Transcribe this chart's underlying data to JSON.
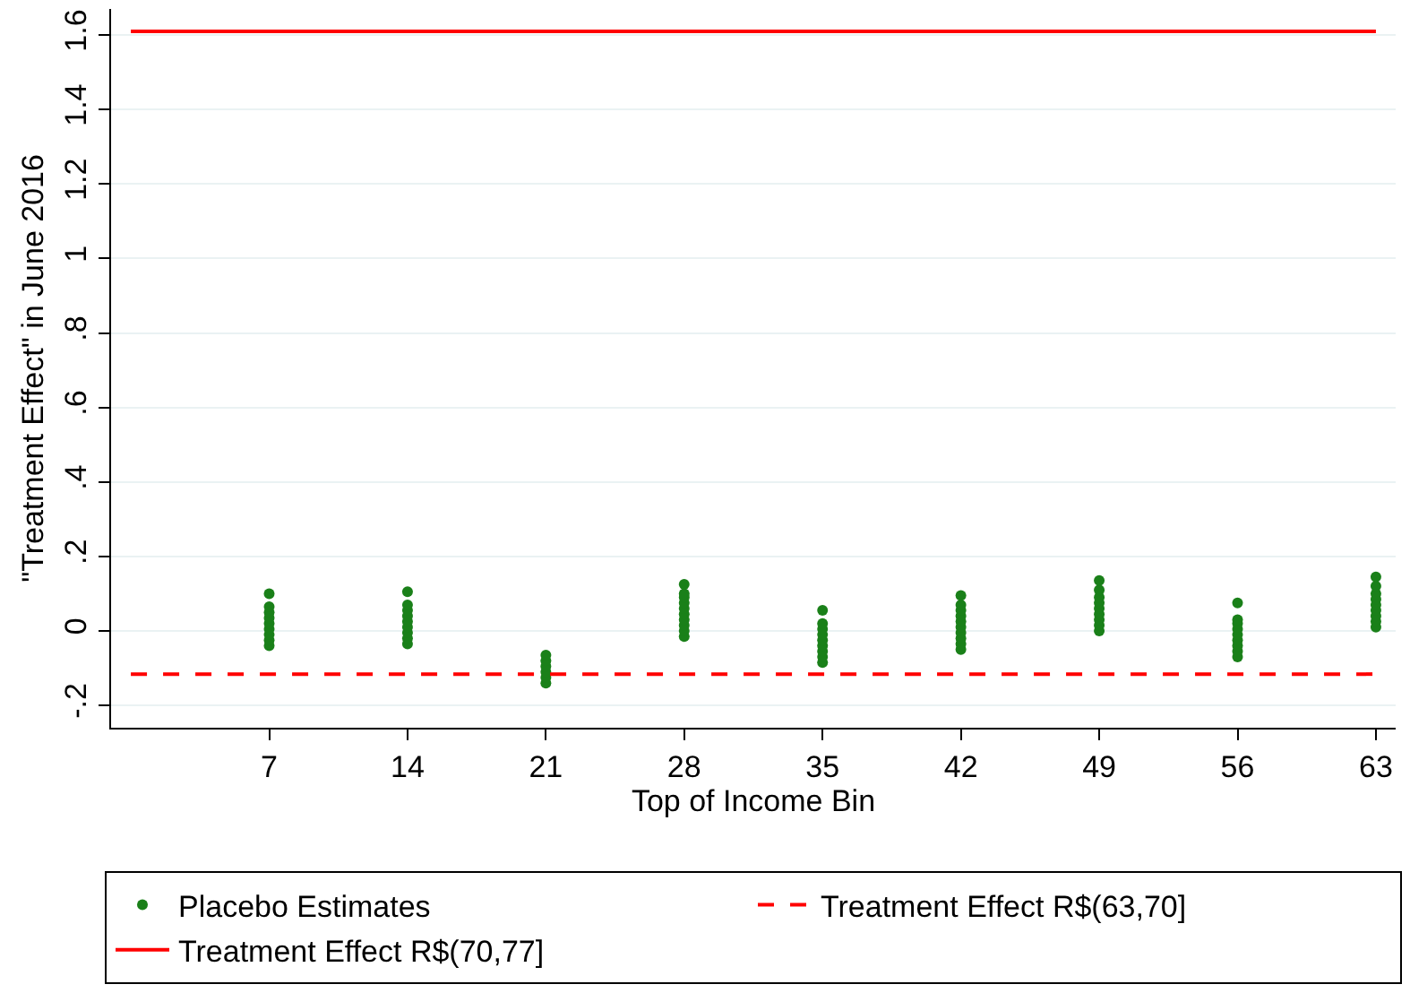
{
  "chart_data": {
    "type": "scatter",
    "xlabel": "Top of Income Bin",
    "ylabel": "\"Treatment Effect\" in June 2016",
    "xlim": [
      -1,
      64
    ],
    "xticks": [
      7,
      14,
      21,
      28,
      35,
      42,
      49,
      56,
      63
    ],
    "ylim": [
      -0.26,
      1.67
    ],
    "yticks": [
      {
        "value": -0.2,
        "label": "-.2"
      },
      0,
      {
        "value": 0.2,
        "label": ".2"
      },
      {
        "value": 0.4,
        "label": ".4"
      },
      {
        "value": 0.6,
        "label": ".6"
      },
      {
        "value": 0.8,
        "label": ".8"
      },
      1,
      {
        "value": 1.2,
        "label": "1.2"
      },
      {
        "value": 1.4,
        "label": "1.4"
      },
      {
        "value": 1.6,
        "label": "1.6"
      }
    ],
    "grid": "y",
    "legend": "bottom",
    "series": [
      {
        "name": "Placebo Estimates",
        "marker": "circle",
        "color": "#1a8019",
        "x": [
          7,
          7,
          7,
          7,
          7,
          7,
          7,
          7,
          7,
          14,
          14,
          14,
          14,
          14,
          14,
          14,
          14,
          14,
          21,
          21,
          21,
          21,
          21,
          21,
          28,
          28,
          28,
          28,
          28,
          28,
          28,
          28,
          28,
          28,
          35,
          35,
          35,
          35,
          35,
          35,
          35,
          35,
          35,
          42,
          42,
          42,
          42,
          42,
          42,
          42,
          42,
          42,
          42,
          49,
          49,
          49,
          49,
          49,
          49,
          49,
          49,
          49,
          56,
          56,
          56,
          56,
          56,
          56,
          56,
          56,
          56,
          63,
          63,
          63,
          63,
          63,
          63,
          63,
          63,
          63
        ],
        "values": [
          -0.04,
          -0.025,
          -0.01,
          0.005,
          0.02,
          0.035,
          0.05,
          0.065,
          0.1,
          -0.035,
          -0.02,
          -0.005,
          0.01,
          0.025,
          0.04,
          0.055,
          0.07,
          0.105,
          -0.14,
          -0.125,
          -0.11,
          -0.095,
          -0.08,
          -0.065,
          -0.015,
          0,
          0.015,
          0.03,
          0.045,
          0.06,
          0.075,
          0.09,
          0.1,
          0.125,
          -0.085,
          -0.07,
          -0.055,
          -0.04,
          -0.025,
          -0.01,
          0.005,
          0.02,
          0.055,
          -0.05,
          -0.035,
          -0.02,
          -0.005,
          0.01,
          0.025,
          0.04,
          0.055,
          0.07,
          0.095,
          0,
          0.015,
          0.03,
          0.045,
          0.06,
          0.075,
          0.09,
          0.11,
          0.135,
          -0.07,
          -0.055,
          -0.04,
          -0.025,
          -0.01,
          0.005,
          0.02,
          0.03,
          0.075,
          0.01,
          0.025,
          0.04,
          0.055,
          0.07,
          0.085,
          0.1,
          0.12,
          0.145
        ]
      },
      {
        "name": "Treatment Effect R$(63,70]",
        "type": "line",
        "line_style": "dashed",
        "color": "#ff0000",
        "x": [
          0,
          63
        ],
        "values": [
          -0.116,
          -0.116
        ]
      },
      {
        "name": "Treatment Effect R$(70,77]",
        "type": "line",
        "line_style": "solid",
        "color": "#ff0000",
        "x": [
          0,
          63
        ],
        "values": [
          1.61,
          1.61
        ]
      }
    ]
  }
}
